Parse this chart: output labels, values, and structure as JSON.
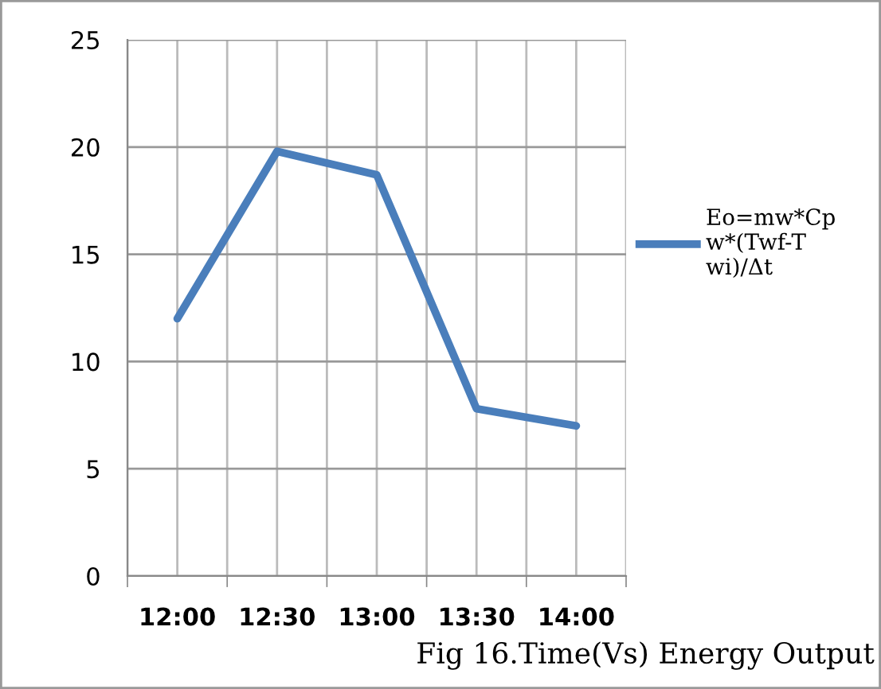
{
  "chart_data": {
    "type": "line",
    "categories": [
      "12:00",
      "12:30",
      "13:00",
      "13:30",
      "14:00"
    ],
    "series": [
      {
        "name": "Eo=mw*Cpw*(Twf-Twi)/Δt",
        "color": "#4a7ebb",
        "values": [
          12,
          19.8,
          18.7,
          7.8,
          7.0
        ]
      }
    ],
    "ylim": [
      0,
      25
    ],
    "yticks": [
      0,
      5,
      10,
      15,
      20,
      25
    ],
    "grid": true,
    "legend": "right",
    "marker": "none",
    "line_style": "solid",
    "annotations": [
      "Fig 16.Time(Vs) Energy Output"
    ]
  }
}
